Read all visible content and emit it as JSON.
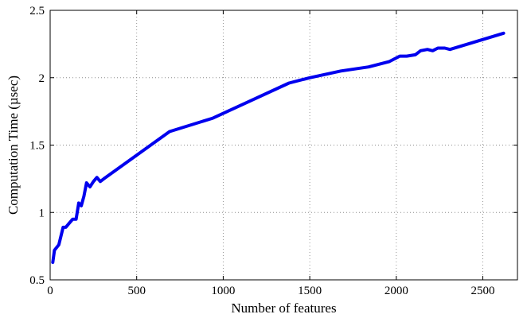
{
  "chart_data": {
    "type": "line",
    "title": "",
    "xlabel": "Number of features",
    "ylabel": "Computation Time (µsec)",
    "xlim": [
      0,
      2700
    ],
    "ylim": [
      0.5,
      2.5
    ],
    "xticks": [
      0,
      500,
      1000,
      1500,
      2000,
      2500
    ],
    "yticks": [
      0.5,
      1,
      1.5,
      2,
      2.5
    ],
    "xtick_labels": [
      "0",
      "500",
      "1000",
      "1500",
      "2000",
      "2500"
    ],
    "ytick_labels": [
      "0.5",
      "1",
      "1.5",
      "2",
      "2.5"
    ],
    "grid": true,
    "series": [
      {
        "color": "#0000ee",
        "x": [
          15,
          25,
          50,
          75,
          90,
          110,
          130,
          150,
          165,
          180,
          195,
          210,
          230,
          250,
          270,
          290,
          310,
          690,
          940,
          1380,
          1500,
          1680,
          1840,
          1960,
          2020,
          2060,
          2110,
          2140,
          2180,
          2210,
          2240,
          2280,
          2310,
          2620
        ],
        "y": [
          0.63,
          0.72,
          0.76,
          0.89,
          0.89,
          0.92,
          0.95,
          0.95,
          1.07,
          1.05,
          1.12,
          1.22,
          1.19,
          1.23,
          1.26,
          1.23,
          1.25,
          1.6,
          1.7,
          1.96,
          2.0,
          2.05,
          2.08,
          2.12,
          2.16,
          2.16,
          2.17,
          2.2,
          2.21,
          2.2,
          2.22,
          2.22,
          2.21,
          2.33
        ]
      }
    ]
  }
}
